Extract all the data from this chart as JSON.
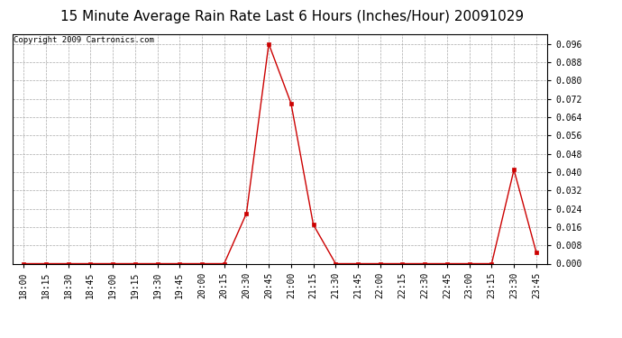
{
  "title": "15 Minute Average Rain Rate Last 6 Hours (Inches/Hour) 20091029",
  "copyright": "Copyright 2009 Cartronics.com",
  "line_color": "#cc0000",
  "marker": "s",
  "marker_size": 2.5,
  "background_color": "#ffffff",
  "grid_color": "#aaaaaa",
  "x_labels": [
    "18:00",
    "18:15",
    "18:30",
    "18:45",
    "19:00",
    "19:15",
    "19:30",
    "19:45",
    "20:00",
    "20:15",
    "20:30",
    "20:45",
    "21:00",
    "21:15",
    "21:30",
    "21:45",
    "22:00",
    "22:15",
    "22:30",
    "22:45",
    "23:00",
    "23:15",
    "23:30",
    "23:45"
  ],
  "y_values": [
    0.0,
    0.0,
    0.0,
    0.0,
    0.0,
    0.0,
    0.0,
    0.0,
    0.0,
    0.0,
    0.022,
    0.096,
    0.07,
    0.017,
    0.0,
    0.0,
    0.0,
    0.0,
    0.0,
    0.0,
    0.0,
    0.0,
    0.041,
    0.005
  ],
  "ylim": [
    0,
    0.1004
  ],
  "yticks": [
    0.0,
    0.008,
    0.016,
    0.024,
    0.032,
    0.04,
    0.048,
    0.056,
    0.064,
    0.072,
    0.08,
    0.088,
    0.096
  ],
  "title_fontsize": 11,
  "tick_fontsize": 7,
  "copyright_fontsize": 6.5
}
